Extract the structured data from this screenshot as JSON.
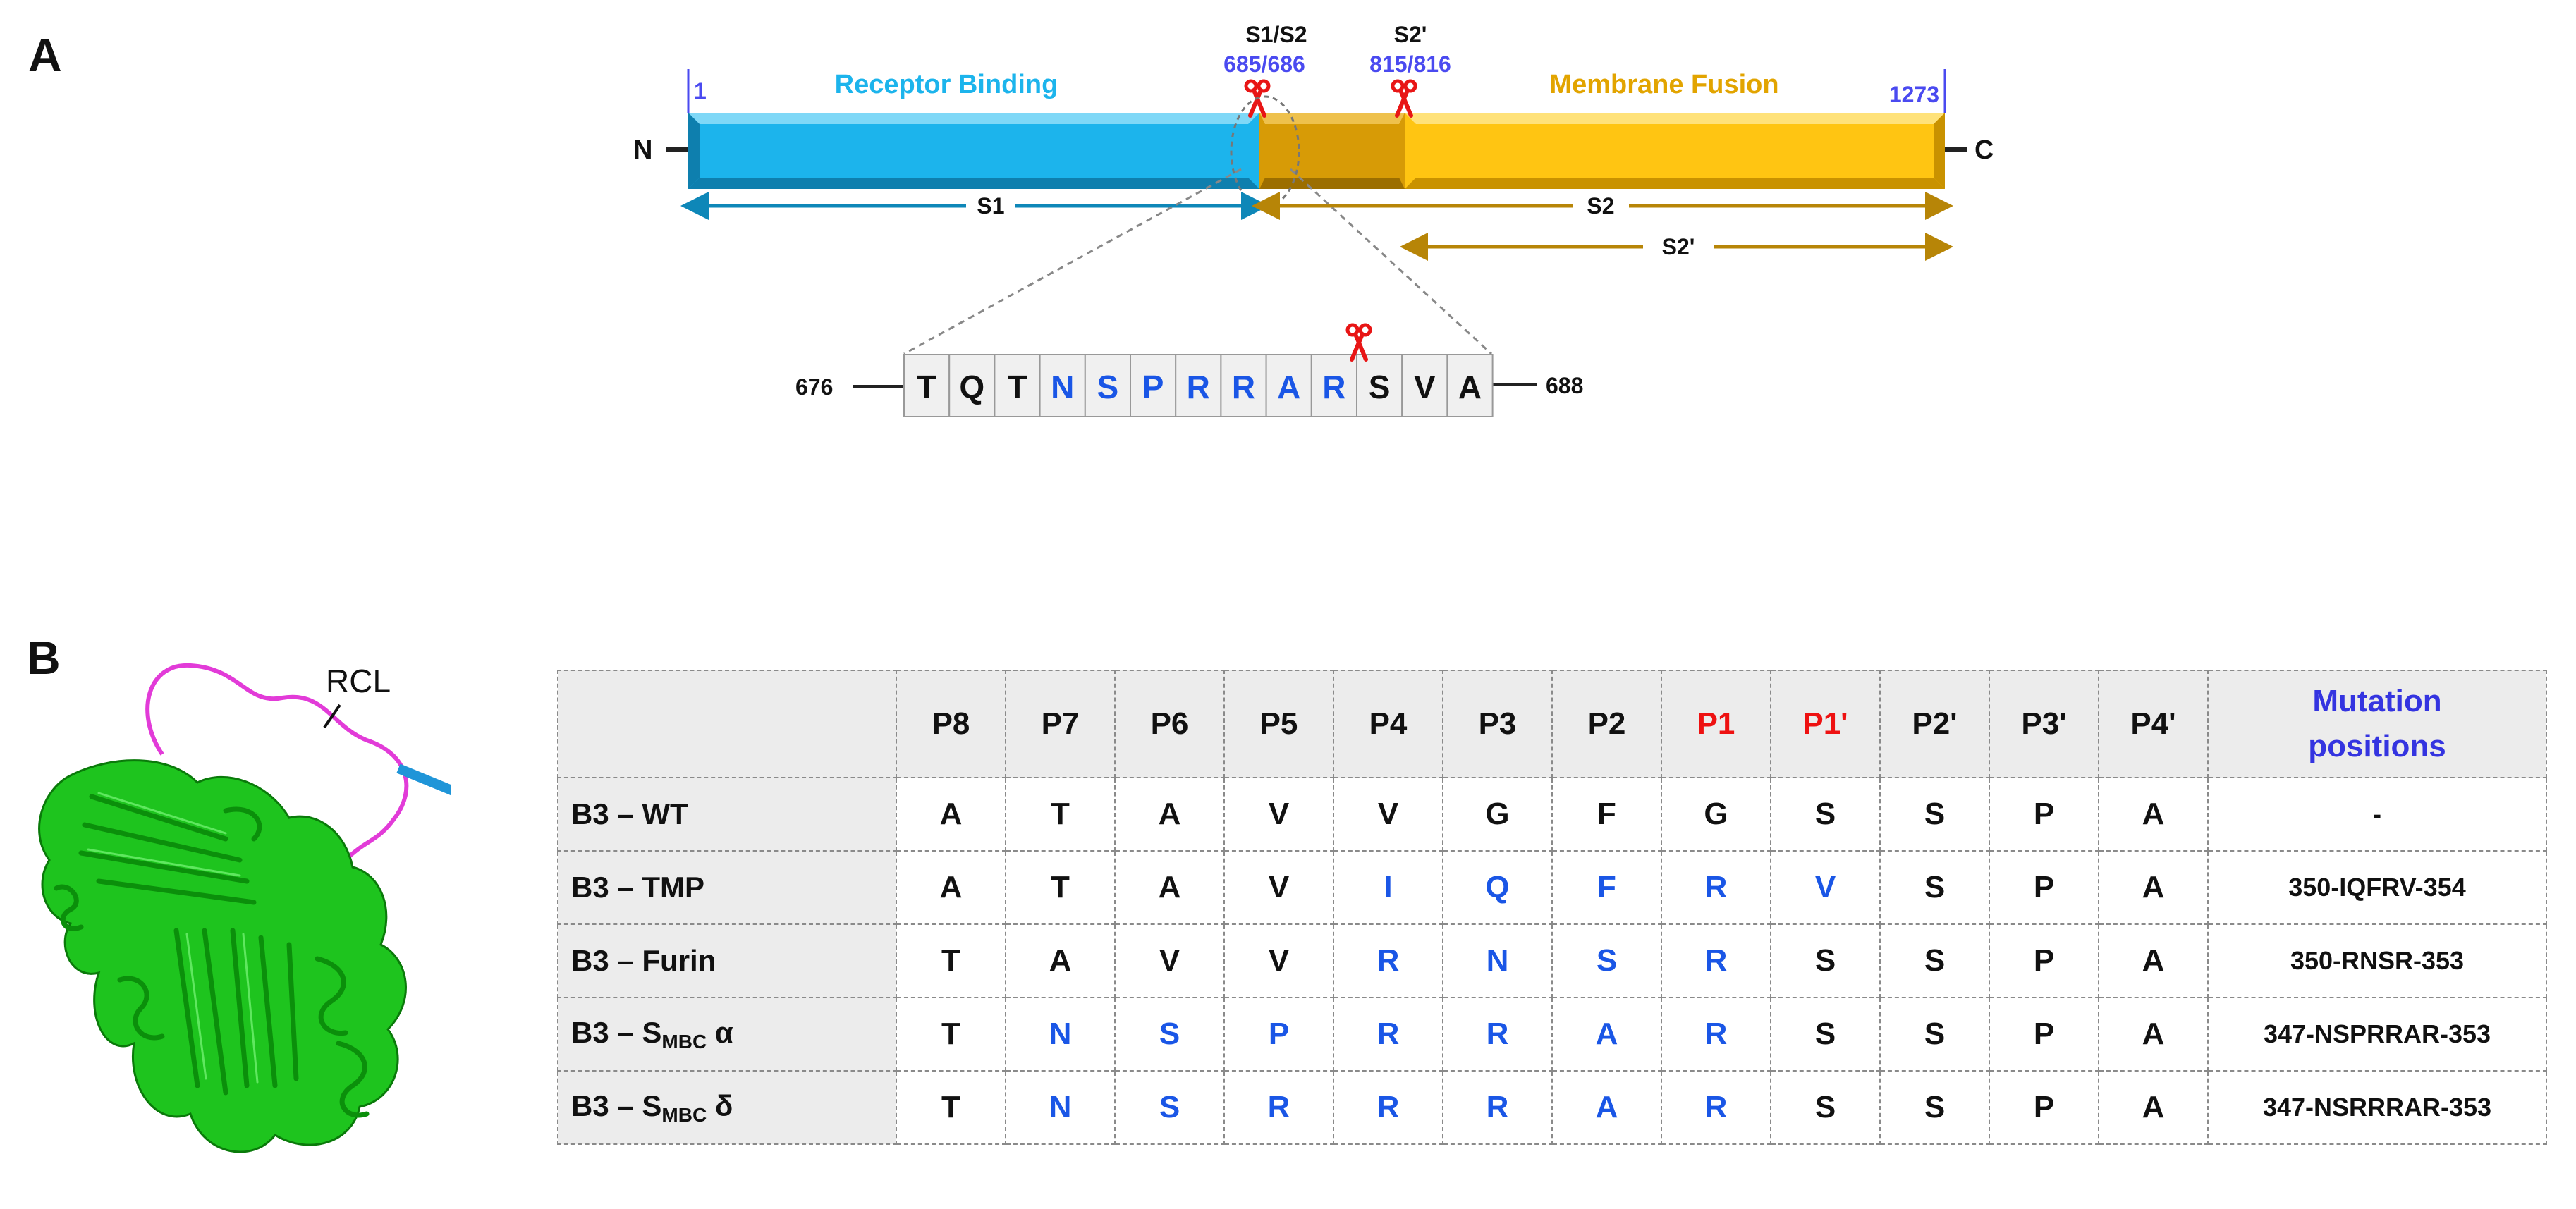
{
  "panel_a": {
    "label": "A",
    "n_terminus": "N",
    "c_terminus": "C",
    "start_pos": "1",
    "end_pos": "1273",
    "receptor_binding": "Receptor Binding",
    "membrane_fusion": "Membrane Fusion",
    "s1s2_label": "S1/S2",
    "s1s2_pos": "685/686",
    "s2p_label": "S2'",
    "s2p_pos": "815/816",
    "s1_arrow": "S1",
    "s2_arrow": "S2",
    "s2p_arrow": "S2'",
    "seq_start": "676",
    "seq_end": "688",
    "sequence": [
      {
        "aa": "T",
        "color": "#111111"
      },
      {
        "aa": "Q",
        "color": "#111111"
      },
      {
        "aa": "T",
        "color": "#111111"
      },
      {
        "aa": "N",
        "color": "#1a56e6"
      },
      {
        "aa": "S",
        "color": "#1a56e6"
      },
      {
        "aa": "P",
        "color": "#1a56e6"
      },
      {
        "aa": "R",
        "color": "#1a56e6"
      },
      {
        "aa": "R",
        "color": "#1a56e6"
      },
      {
        "aa": "A",
        "color": "#1a56e6"
      },
      {
        "aa": "R",
        "color": "#1a56e6"
      },
      {
        "aa": "S",
        "color": "#111111"
      },
      {
        "aa": "V",
        "color": "#111111"
      },
      {
        "aa": "A",
        "color": "#111111"
      }
    ],
    "colors": {
      "receptor": "#1cb4ec",
      "receptor_dark": "#0e7fae",
      "fusion": "#ffc512",
      "fusion_dark": "#c99200",
      "middle": "#d79b06",
      "scissors": "#e81515",
      "pos_label": "#4a4af0"
    }
  },
  "panel_b": {
    "label": "B",
    "rcl_label": "RCL",
    "header": {
      "positions": [
        {
          "text": "P8",
          "color": "#111111"
        },
        {
          "text": "P7",
          "color": "#111111"
        },
        {
          "text": "P6",
          "color": "#111111"
        },
        {
          "text": "P5",
          "color": "#111111"
        },
        {
          "text": "P4",
          "color": "#111111"
        },
        {
          "text": "P3",
          "color": "#111111"
        },
        {
          "text": "P2",
          "color": "#111111"
        },
        {
          "text": "P1",
          "color": "#ee1111"
        },
        {
          "text": "P1'",
          "color": "#ee1111"
        },
        {
          "text": "P2'",
          "color": "#111111"
        },
        {
          "text": "P3'",
          "color": "#111111"
        },
        {
          "text": "P4'",
          "color": "#111111"
        }
      ],
      "mutation_line1": "Mutation",
      "mutation_line2": "positions"
    },
    "rows": [
      {
        "label": "B3 – WT",
        "sub": "",
        "suffix": "",
        "cells": [
          "A",
          "T",
          "A",
          "V",
          "V",
          "G",
          "F",
          "G",
          "S",
          "S",
          "P",
          "A"
        ],
        "mutated": [],
        "mutation": "-"
      },
      {
        "label": "B3 – TMP",
        "sub": "",
        "suffix": "",
        "cells": [
          "A",
          "T",
          "A",
          "V",
          "I",
          "Q",
          "F",
          "R",
          "V",
          "S",
          "P",
          "A"
        ],
        "mutated": [
          4,
          5,
          6,
          7,
          8
        ],
        "mutation": "350-IQFRV-354"
      },
      {
        "label": "B3 – Furin",
        "sub": "",
        "suffix": "",
        "cells": [
          "T",
          "A",
          "V",
          "V",
          "R",
          "N",
          "S",
          "R",
          "S",
          "S",
          "P",
          "A"
        ],
        "mutated": [
          4,
          5,
          6,
          7
        ],
        "mutation": "350-RNSR-353"
      },
      {
        "label": "B3 – S",
        "sub": "MBC",
        "suffix": " α",
        "cells": [
          "T",
          "N",
          "S",
          "P",
          "R",
          "R",
          "A",
          "R",
          "S",
          "S",
          "P",
          "A"
        ],
        "mutated": [
          1,
          2,
          3,
          4,
          5,
          6,
          7
        ],
        "mutation": "347-NSPRRAR-353"
      },
      {
        "label": "B3 – S",
        "sub": "MBC",
        "suffix": " δ",
        "cells": [
          "T",
          "N",
          "S",
          "R",
          "R",
          "R",
          "A",
          "R",
          "S",
          "S",
          "P",
          "A"
        ],
        "mutated": [
          1,
          2,
          3,
          4,
          5,
          6,
          7
        ],
        "mutation": "347-NSRRRAR-353"
      }
    ]
  }
}
